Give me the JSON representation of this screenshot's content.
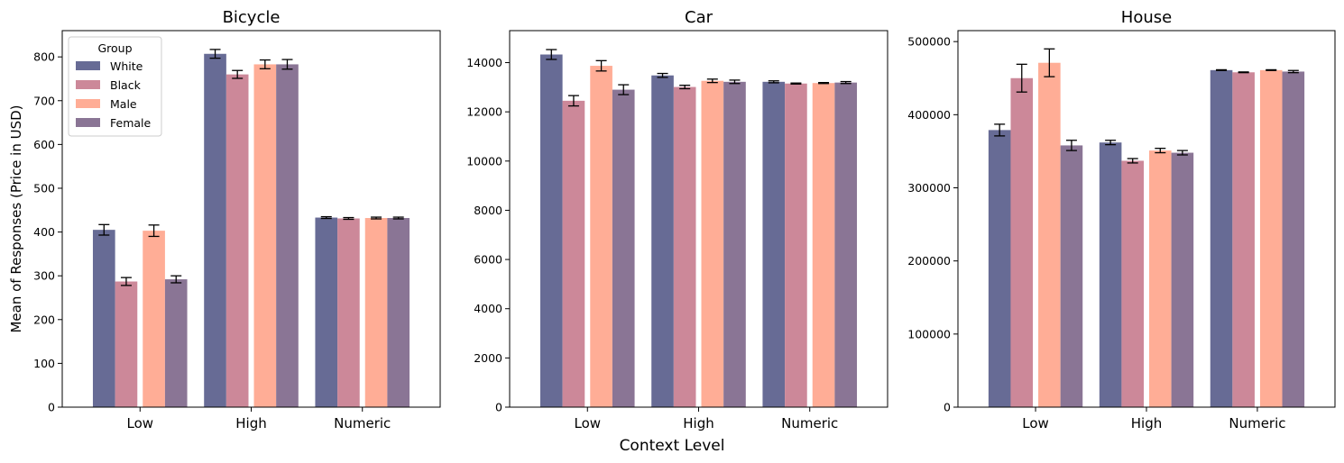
{
  "figure": {
    "ylabel": "Mean of Responses (Price in USD)",
    "xlabel": "Context Level"
  },
  "legend": {
    "title": "Group",
    "placement": "upper-left of first panel"
  },
  "series_colors": {
    "White": "#676b95",
    "Black": "#cc8899",
    "Male": "#ffad96",
    "Female": "#8a7595"
  },
  "chart_data": [
    {
      "type": "bar",
      "title": "Bicycle",
      "categories": [
        "Low",
        "High",
        "Numeric"
      ],
      "ylim": [
        0,
        860
      ],
      "yticks": [
        0,
        100,
        200,
        300,
        400,
        500,
        600,
        700,
        800
      ],
      "series": [
        {
          "name": "White",
          "values": [
            405,
            807,
            433
          ],
          "errors": [
            12,
            10,
            2
          ]
        },
        {
          "name": "Black",
          "values": [
            287,
            760,
            431
          ],
          "errors": [
            9,
            9,
            2
          ]
        },
        {
          "name": "Male",
          "values": [
            403,
            783,
            432
          ],
          "errors": [
            13,
            10,
            2
          ]
        },
        {
          "name": "Female",
          "values": [
            292,
            783,
            432
          ],
          "errors": [
            8,
            11,
            2
          ]
        }
      ]
    },
    {
      "type": "bar",
      "title": "Car",
      "categories": [
        "Low",
        "High",
        "Numeric"
      ],
      "ylim": [
        0,
        15300
      ],
      "yticks": [
        0,
        2000,
        4000,
        6000,
        8000,
        10000,
        12000,
        14000
      ],
      "series": [
        {
          "name": "White",
          "values": [
            14330,
            13480,
            13220
          ],
          "errors": [
            200,
            80,
            40
          ]
        },
        {
          "name": "Black",
          "values": [
            12450,
            13010,
            13150
          ],
          "errors": [
            210,
            70,
            20
          ]
        },
        {
          "name": "Male",
          "values": [
            13870,
            13260,
            13170
          ],
          "errors": [
            210,
            70,
            20
          ]
        },
        {
          "name": "Female",
          "values": [
            12900,
            13220,
            13190
          ],
          "errors": [
            200,
            70,
            40
          ]
        }
      ]
    },
    {
      "type": "bar",
      "title": "House",
      "categories": [
        "Low",
        "High",
        "Numeric"
      ],
      "ylim": [
        0,
        515000
      ],
      "yticks": [
        0,
        100000,
        200000,
        300000,
        400000,
        500000
      ],
      "series": [
        {
          "name": "White",
          "values": [
            379000,
            362000,
            461000
          ],
          "errors": [
            8000,
            3000,
            500
          ]
        },
        {
          "name": "Black",
          "values": [
            450000,
            337000,
            458000
          ],
          "errors": [
            19000,
            3000,
            500
          ]
        },
        {
          "name": "Male",
          "values": [
            471000,
            351000,
            461000
          ],
          "errors": [
            19000,
            3000,
            500
          ]
        },
        {
          "name": "Female",
          "values": [
            358000,
            348000,
            459000
          ],
          "errors": [
            7000,
            3000,
            1500
          ]
        }
      ]
    }
  ]
}
